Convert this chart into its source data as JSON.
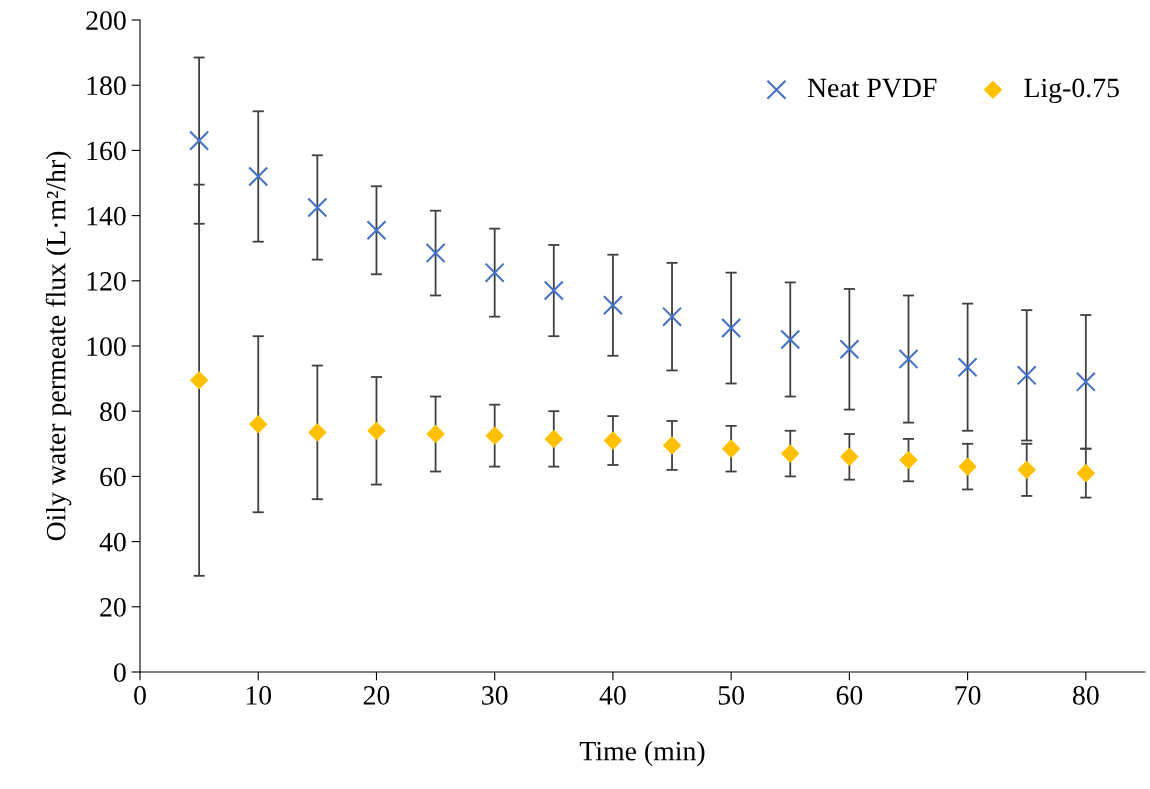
{
  "chart_data": {
    "type": "scatter",
    "xlabel": "Time (min)",
    "ylabel": "Oily water permeate flux (L·m²/hr)",
    "x": [
      5,
      10,
      15,
      20,
      25,
      30,
      35,
      40,
      45,
      50,
      55,
      60,
      65,
      70,
      75,
      80
    ],
    "series": [
      {
        "name": "Neat PVDF",
        "color": "#4472c4",
        "marker": "cross",
        "values": [
          163,
          152,
          142.5,
          135.5,
          128.5,
          122.5,
          117,
          112.5,
          109,
          105.5,
          102,
          99,
          96,
          93.5,
          91,
          89
        ],
        "errors": [
          25.5,
          20,
          16,
          13.5,
          13,
          13.5,
          14,
          15.5,
          16.5,
          17,
          17.5,
          18.5,
          19.5,
          19.5,
          20,
          20.5
        ]
      },
      {
        "name": "Lig-0.75",
        "color": "#ffc000",
        "marker": "diamond",
        "values": [
          89.5,
          76,
          73.5,
          74,
          73,
          72.5,
          71.5,
          71,
          69.5,
          68.5,
          67,
          66,
          65,
          63,
          62,
          61
        ],
        "errors": [
          60,
          27,
          20.5,
          16.5,
          11.5,
          9.5,
          8.5,
          7.5,
          7.5,
          7,
          7,
          7,
          6.5,
          7,
          8,
          7.5
        ]
      }
    ],
    "xlim": [
      0,
      85
    ],
    "xticks": [
      0,
      10,
      20,
      30,
      40,
      50,
      60,
      70,
      80
    ],
    "ylim": [
      0,
      200
    ],
    "yticks": [
      0,
      20,
      40,
      60,
      80,
      100,
      120,
      140,
      160,
      180,
      200
    ],
    "grid": false,
    "legend": "top right"
  }
}
